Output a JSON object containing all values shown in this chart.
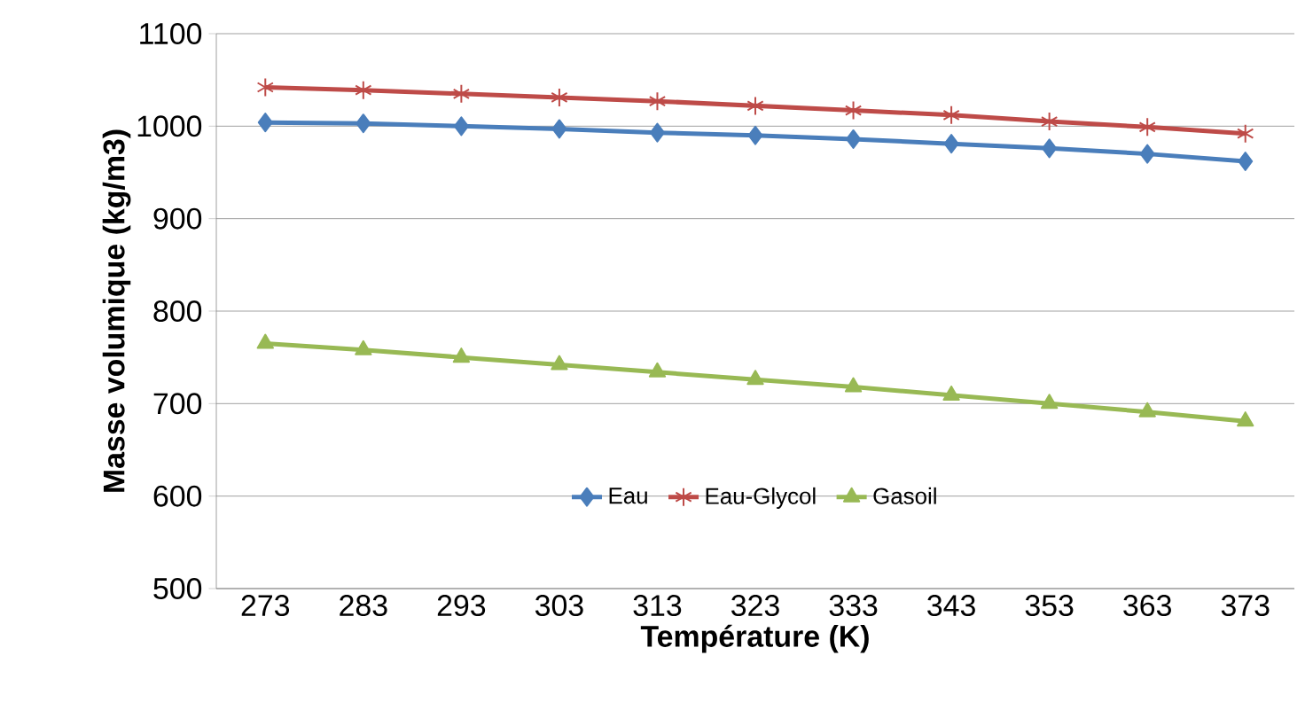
{
  "chart_data": {
    "type": "line",
    "xlabel": "Température (K)",
    "ylabel": "Masse volumique (kg/m3)",
    "categories": [
      "273",
      "283",
      "293",
      "303",
      "313",
      "323",
      "333",
      "343",
      "353",
      "363",
      "373"
    ],
    "series": [
      {
        "name": "Eau",
        "color": "#4a7ebb",
        "marker": "diamond",
        "values": [
          1004,
          1003,
          1000,
          997,
          993,
          990,
          986,
          981,
          976,
          970,
          962
        ]
      },
      {
        "name": "Eau-Glycol",
        "color": "#be4b48",
        "marker": "cross",
        "values": [
          1042,
          1039,
          1035,
          1031,
          1027,
          1022,
          1017,
          1012,
          1005,
          999,
          992
        ]
      },
      {
        "name": "Gasoil",
        "color": "#98b954",
        "marker": "triangle",
        "values": [
          765,
          758,
          750,
          742,
          734,
          726,
          718,
          709,
          700,
          691,
          681
        ]
      }
    ],
    "ylim": [
      500,
      1100
    ],
    "yticks": [
      500,
      600,
      700,
      800,
      900,
      1000,
      1100
    ],
    "grid": "y",
    "legend": "bottom"
  }
}
